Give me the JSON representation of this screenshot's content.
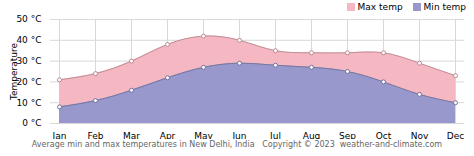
{
  "chart_data": {
    "type": "area",
    "title": "Average min and max temperatures in New Delhi, India   Copyright © 2023  weather-and-climate.com",
    "categories": [
      "Jan",
      "Feb",
      "Mar",
      "Apr",
      "May",
      "Jun",
      "Jul",
      "Aug",
      "Sep",
      "Oct",
      "Nov",
      "Dec"
    ],
    "series": [
      {
        "name": "Max temp",
        "color": "#f5b8c2",
        "values": [
          21,
          24,
          30,
          38,
          42,
          40,
          35,
          34,
          34,
          34,
          29,
          23
        ]
      },
      {
        "name": "Min temp",
        "color": "#9898cc",
        "values": [
          8,
          11,
          16,
          22,
          27,
          29,
          28,
          27,
          25,
          20,
          14,
          10
        ]
      }
    ],
    "ylabel": "Temperature",
    "ylim": [
      0,
      50
    ],
    "yticks": [
      {
        "value": 0,
        "label": "0 °C"
      },
      {
        "value": 10,
        "label": "10 °C"
      },
      {
        "value": 20,
        "label": "20 °C"
      },
      {
        "value": 30,
        "label": "30 °C"
      },
      {
        "value": 40,
        "label": "40 °C"
      },
      {
        "value": 50,
        "label": "50 °C"
      }
    ],
    "grid": true,
    "legend": "upper right",
    "marker": "circle"
  }
}
